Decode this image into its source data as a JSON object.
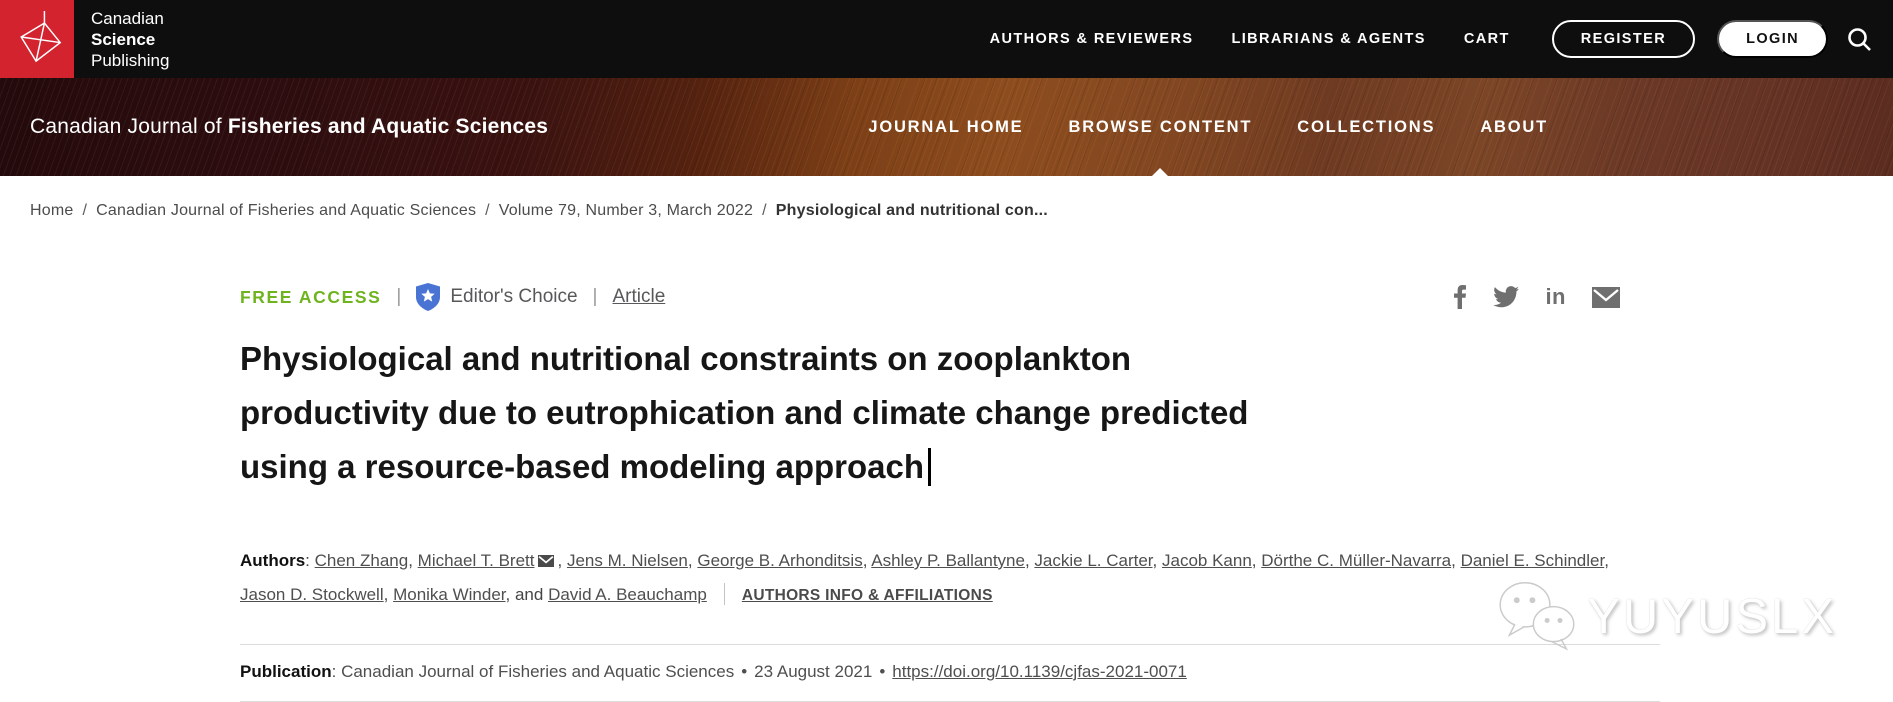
{
  "header": {
    "logo": {
      "line1": "Canadian",
      "line2": "Science",
      "line3": "Publishing"
    },
    "nav": [
      {
        "label": "AUTHORS & REVIEWERS"
      },
      {
        "label": "LIBRARIANS & AGENTS"
      },
      {
        "label": "CART"
      }
    ],
    "register_label": "REGISTER",
    "login_label": "LOGIN",
    "search_icon": "magnifier-icon"
  },
  "journal_banner": {
    "title_prefix": "Canadian Journal of ",
    "title_bold": "Fisheries and Aquatic Sciences",
    "nav": [
      {
        "label": "JOURNAL HOME"
      },
      {
        "label": "BROWSE CONTENT",
        "has_dropdown": true
      },
      {
        "label": "COLLECTIONS"
      },
      {
        "label": "ABOUT"
      }
    ]
  },
  "breadcrumb": {
    "separator": "/",
    "items": [
      "Home",
      "Canadian Journal of Fisheries and Aquatic Sciences",
      "Volume 79, Number 3, March 2022"
    ],
    "current": "Physiological and nutritional con..."
  },
  "article": {
    "access_label": "FREE ACCESS",
    "badge_separator": "|",
    "editors_choice_icon": "shield-star-icon",
    "editors_choice_label": "Editor's Choice",
    "type_label": "Article",
    "title_lines": [
      "Physiological and nutritional constraints on zooplankton",
      "productivity due to eutrophication and climate change predicted",
      "using a resource-based modeling approach"
    ],
    "authors_label": "Authors",
    "colon": ": ",
    "authors": [
      {
        "name": "Chen Zhang",
        "sep": ", "
      },
      {
        "name": "Michael T. Brett",
        "email": true,
        "sep": ", "
      },
      {
        "name": "Jens M. Nielsen",
        "sep": ", "
      },
      {
        "name": "George B. Arhonditsis",
        "sep": ", "
      },
      {
        "name": "Ashley P. Ballantyne",
        "sep": ", "
      },
      {
        "name": "Jackie L. Carter",
        "sep": ", "
      },
      {
        "name": "Jacob Kann",
        "sep": ", "
      },
      {
        "name": "Dörthe C. Müller-Navarra",
        "sep": ", "
      },
      {
        "name": "Daniel E. Schindler",
        "sep": ", "
      },
      {
        "name": "Jason D. Stockwell",
        "sep": ", "
      },
      {
        "name": "Monika Winder",
        "sep": ", "
      },
      {
        "name": "David A. Beauchamp",
        "prefix": "and "
      }
    ],
    "authors_info_label": "AUTHORS INFO & AFFILIATIONS",
    "publication_label": "Publication",
    "publication_journal": "Canadian Journal of Fisheries and Aquatic Sciences",
    "publication_bullet": "•",
    "publication_date": "23 August 2021",
    "publication_doi": "https://doi.org/10.1139/cjfas-2021-0071"
  },
  "social_icons": [
    "facebook-icon",
    "twitter-icon",
    "linkedin-icon",
    "email-icon"
  ],
  "watermark": {
    "text": "YUYUSLX",
    "icon": "wechat-icon"
  },
  "colors": {
    "header_bg": "#0e0e0e",
    "logo_red": "#d2232e",
    "free_access_green": "#6fb41f",
    "editors_choice_blue": "#4a74d4",
    "banner_maroon": "#2e0d0f",
    "banner_brown": "#8d4c1d"
  }
}
